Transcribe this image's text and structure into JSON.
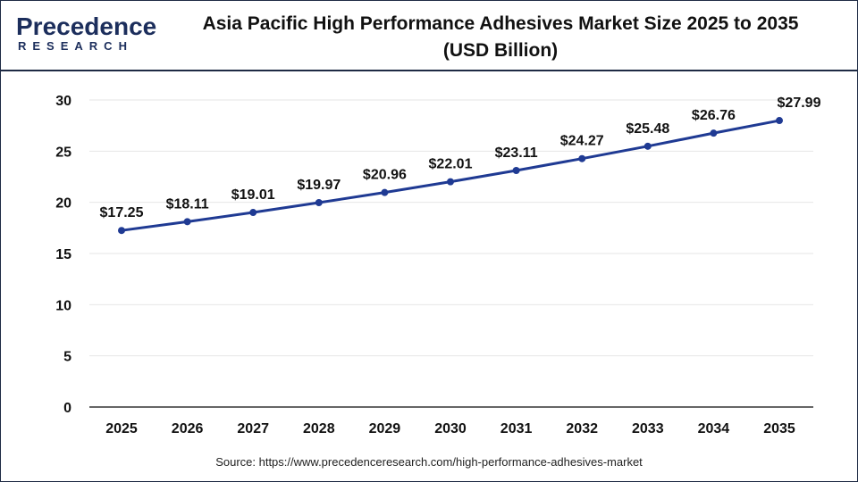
{
  "header": {
    "logo_main": "Precedence",
    "logo_sub": "RESEARCH",
    "title_line1": "Asia Pacific High Performance Adhesives Market Size 2025 to 2035",
    "title_line2": "(USD Billion)"
  },
  "footer": {
    "source": "Source: https://www.precedenceresearch.com/high-performance-adhesives-market"
  },
  "colors": {
    "line": "#1f3a93",
    "marker": "#1f3a93",
    "grid": "#e6e6e6",
    "axis": "#333333",
    "brand": "#1c2e5c"
  },
  "chart_data": {
    "type": "line",
    "title": "Asia Pacific High Performance Adhesives Market Size 2025 to 2035 (USD Billion)",
    "xlabel": "",
    "ylabel": "",
    "ylim": [
      0,
      30
    ],
    "yticks": [
      0,
      5,
      10,
      15,
      20,
      25,
      30
    ],
    "grid": true,
    "legend": "none",
    "categories": [
      "2025",
      "2026",
      "2027",
      "2028",
      "2029",
      "2030",
      "2031",
      "2032",
      "2033",
      "2034",
      "2035"
    ],
    "series": [
      {
        "values": [
          17.25,
          18.11,
          19.01,
          19.97,
          20.96,
          22.01,
          23.11,
          24.27,
          25.48,
          26.76,
          27.99
        ],
        "data_labels": [
          "$17.25",
          "$18.11",
          "$19.01",
          "$19.97",
          "$20.96",
          "$22.01",
          "$23.11",
          "$24.27",
          "$25.48",
          "$26.76",
          "$27.99"
        ]
      }
    ]
  }
}
